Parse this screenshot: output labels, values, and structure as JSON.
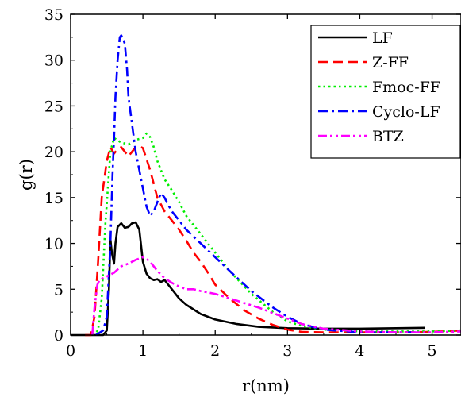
{
  "chart_data": {
    "type": "line",
    "xlabel": "r(nm)",
    "ylabel": "g(r)",
    "xlim": [
      0,
      5.4
    ],
    "ylim": [
      0,
      35
    ],
    "xticks": [
      0,
      1,
      2,
      3,
      4,
      5
    ],
    "yticks": [
      0,
      5,
      10,
      15,
      20,
      25,
      30,
      35
    ],
    "grid": false,
    "legend_position": "top-right",
    "series": [
      {
        "name": "LF",
        "color": "#000000",
        "dash": "solid",
        "x": [
          0,
          0.45,
          0.5,
          0.53,
          0.55,
          0.57,
          0.6,
          0.62,
          0.65,
          0.7,
          0.75,
          0.8,
          0.85,
          0.9,
          0.95,
          1.0,
          1.05,
          1.1,
          1.15,
          1.2,
          1.25,
          1.3,
          1.35,
          1.4,
          1.5,
          1.6,
          1.8,
          2.0,
          2.3,
          2.6,
          3.0,
          3.5,
          4.0,
          4.5,
          4.9
        ],
        "y": [
          0,
          0,
          0.5,
          5.0,
          10.5,
          9.0,
          7.8,
          10.0,
          11.8,
          12.2,
          11.7,
          11.8,
          12.2,
          12.3,
          11.5,
          8.0,
          6.7,
          6.2,
          6.0,
          6.1,
          5.8,
          6.0,
          5.5,
          5.0,
          4.0,
          3.3,
          2.3,
          1.7,
          1.2,
          0.9,
          0.75,
          0.7,
          0.7,
          0.75,
          0.8
        ]
      },
      {
        "name": "Z-FF",
        "color": "#ff0000",
        "dash": "dash",
        "x": [
          0.2,
          0.28,
          0.33,
          0.38,
          0.43,
          0.5,
          0.55,
          0.6,
          0.65,
          0.7,
          0.75,
          0.8,
          0.85,
          0.9,
          0.95,
          1.0,
          1.1,
          1.2,
          1.3,
          1.4,
          1.5,
          1.6,
          1.7,
          1.8,
          1.9,
          2.0,
          2.2,
          2.4,
          2.6,
          2.8,
          3.0,
          3.2,
          3.5,
          4.0,
          4.5,
          5.0,
          5.4
        ],
        "y": [
          0,
          0,
          2.0,
          8.0,
          15.0,
          19.0,
          20.5,
          19.8,
          20.3,
          20.5,
          20.0,
          19.5,
          20.0,
          20.5,
          20.6,
          20.4,
          18.0,
          15.0,
          13.5,
          12.5,
          11.5,
          10.3,
          9.0,
          8.0,
          6.8,
          5.5,
          4.0,
          2.7,
          1.8,
          1.1,
          0.6,
          0.35,
          0.3,
          0.3,
          0.3,
          0.35,
          0.5
        ]
      },
      {
        "name": "Fmoc-FF",
        "color": "#00ee00",
        "dash": "dot",
        "x": [
          0.3,
          0.38,
          0.43,
          0.48,
          0.55,
          0.6,
          0.7,
          0.8,
          0.9,
          1.0,
          1.05,
          1.1,
          1.15,
          1.2,
          1.3,
          1.4,
          1.5,
          1.6,
          1.8,
          2.0,
          2.2,
          2.5,
          2.8,
          3.0,
          3.2,
          3.5,
          4.0,
          4.5,
          5.0,
          5.4
        ],
        "y": [
          0,
          0.5,
          4.0,
          12.0,
          20.0,
          21.5,
          21.0,
          20.8,
          21.3,
          21.5,
          22.0,
          21.6,
          20.5,
          19.0,
          17.0,
          15.8,
          14.5,
          13.0,
          11.0,
          9.0,
          7.0,
          4.5,
          2.5,
          1.5,
          1.0,
          0.6,
          0.4,
          0.4,
          0.4,
          0.5
        ]
      },
      {
        "name": "Cyclo-LF",
        "color": "#0000ff",
        "dash": "dashdot",
        "x": [
          0.35,
          0.45,
          0.5,
          0.55,
          0.58,
          0.6,
          0.62,
          0.65,
          0.68,
          0.7,
          0.73,
          0.75,
          0.78,
          0.8,
          0.85,
          0.9,
          0.95,
          1.0,
          1.05,
          1.1,
          1.15,
          1.2,
          1.25,
          1.3,
          1.35,
          1.4,
          1.5,
          1.6,
          1.8,
          2.0,
          2.2,
          2.5,
          2.8,
          3.0,
          3.2,
          3.5,
          4.0,
          4.5,
          4.8
        ],
        "y": [
          0,
          0.5,
          2.0,
          10.0,
          17.5,
          21.5,
          26.0,
          30.0,
          32.5,
          32.7,
          32.2,
          31.8,
          29.0,
          26.0,
          23.0,
          20.0,
          18.0,
          16.0,
          14.0,
          13.0,
          13.5,
          14.5,
          15.5,
          15.0,
          14.2,
          13.5,
          12.5,
          11.5,
          10.0,
          8.5,
          7.0,
          4.8,
          3.0,
          2.0,
          1.2,
          0.6,
          0.3,
          0.3,
          0.3
        ]
      },
      {
        "name": "BTZ",
        "color": "#ff00ff",
        "dash": "dashdotdot",
        "x": [
          0.3,
          0.33,
          0.37,
          0.4,
          0.45,
          0.5,
          0.55,
          0.6,
          0.7,
          0.8,
          0.9,
          1.0,
          1.05,
          1.1,
          1.2,
          1.3,
          1.4,
          1.5,
          1.6,
          1.7,
          1.8,
          2.0,
          2.2,
          2.4,
          2.6,
          2.8,
          3.0,
          3.2,
          3.5,
          4.0,
          4.5,
          5.0,
          5.4
        ],
        "y": [
          0,
          3.0,
          5.5,
          6.0,
          6.2,
          6.4,
          6.6,
          6.8,
          7.5,
          7.8,
          8.2,
          8.5,
          8.3,
          8.0,
          7.0,
          6.2,
          5.7,
          5.3,
          5.0,
          5.0,
          4.8,
          4.5,
          4.0,
          3.5,
          3.0,
          2.4,
          1.8,
          1.2,
          0.7,
          0.4,
          0.3,
          0.3,
          0.4
        ]
      }
    ]
  }
}
